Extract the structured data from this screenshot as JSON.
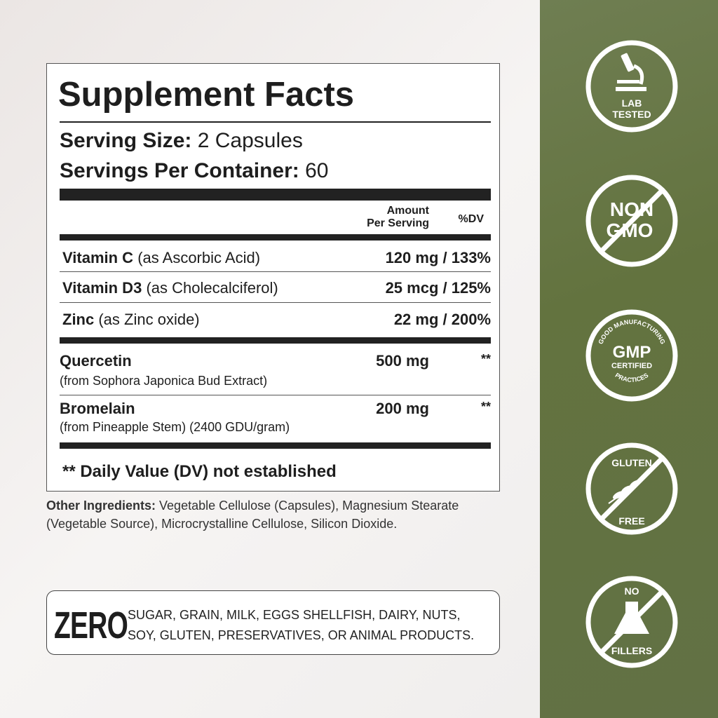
{
  "label": {
    "title": "Supplement Facts",
    "serving_size_label": "Serving Size:",
    "serving_size_value": "2 Capsules",
    "servings_label": "Servings Per Container:",
    "servings_value": "60",
    "header_amount_line1": "Amount",
    "header_amount_line2": "Per Serving",
    "header_dv": "%DV",
    "nutrients": [
      {
        "name": "Vitamin C",
        "source": "(as Ascorbic Acid)",
        "amount": "120 mg / 133%"
      },
      {
        "name": "Vitamin D3",
        "source": "(as Cholecalciferol)",
        "amount": "25 mcg / 125%"
      },
      {
        "name": "Zinc",
        "source": "(as Zinc oxide)",
        "amount": "22 mg / 200%"
      }
    ],
    "others": [
      {
        "name": "Quercetin",
        "source": "(from Sophora Japonica Bud Extract)",
        "amount": "500 mg",
        "dv": "**"
      },
      {
        "name": "Bromelain",
        "source": "(from Pineapple Stem) (2400 GDU/gram)",
        "amount": "200 mg",
        "dv": "**"
      }
    ],
    "footnote": "** Daily Value (DV) not established"
  },
  "other_ingredients": {
    "label": "Other Ingredients:",
    "text": "Vegetable Cellulose (Capsules), Magnesium Stearate (Vegetable Source), Microcrystalline Cellulose, Silicon Dioxide."
  },
  "zero": {
    "word": "ZERO",
    "line1": "SUGAR, GRAIN, MILK, EGGS SHELLFISH, DAIRY, NUTS,",
    "line2": "SOY, GLUTEN, PRESERVATIVES, OR ANIMAL PRODUCTS."
  },
  "badges": [
    {
      "icon": "microscope-icon",
      "line1": "LAB",
      "line2": "TESTED"
    },
    {
      "icon": "prohibited-icon",
      "line1": "NON",
      "line2": "GMO"
    },
    {
      "icon": "gmp-seal-icon",
      "top": "GOOD MANUFACTURING",
      "line1": "GMP",
      "line2": "CERTIFIED",
      "bottom": "PRACTICES"
    },
    {
      "icon": "wheat-icon",
      "line1": "GLUTEN",
      "line2": "FREE"
    },
    {
      "icon": "flask-icon",
      "line1": "NO",
      "line2": "FILLERS"
    }
  ],
  "colors": {
    "panel": "#66754a",
    "badge": "#ffffff",
    "text": "#1e1e1e"
  }
}
